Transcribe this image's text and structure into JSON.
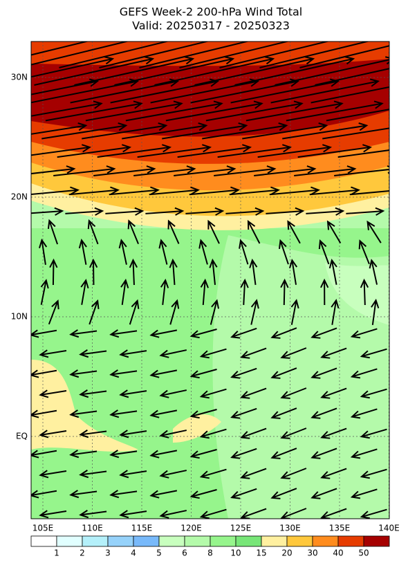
{
  "map": {
    "title": "GEFS Week-2 200-hPa Wind Total",
    "subtitle": "Valid: 20250317 - 20250323",
    "lon_ticks": [
      {
        "value": 105,
        "label": "105E"
      },
      {
        "value": 110,
        "label": "110E"
      },
      {
        "value": 115,
        "label": "115E"
      },
      {
        "value": 120,
        "label": "120E"
      },
      {
        "value": 125,
        "label": "125E"
      },
      {
        "value": 130,
        "label": "130E"
      },
      {
        "value": 135,
        "label": "135E"
      },
      {
        "value": 140,
        "label": "140E"
      }
    ],
    "lat_ticks": [
      {
        "value": 30,
        "label": "30N"
      },
      {
        "value": 20,
        "label": "20N"
      },
      {
        "value": 10,
        "label": "10N"
      },
      {
        "value": 0,
        "label": "EQ"
      }
    ]
  },
  "colorbar": {
    "levels": [
      1,
      2,
      3,
      4,
      5,
      6,
      8,
      10,
      15,
      20,
      30,
      40,
      50
    ],
    "colors": [
      "#ffffff",
      "#e1ffff",
      "#b4f0fa",
      "#96d2fa",
      "#78b9fa",
      "#c8ffbe",
      "#b4faaa",
      "#96f58c",
      "#78e678",
      "#fff0a0",
      "#ffc83c",
      "#ff8c1e",
      "#e63c00",
      "#a50000"
    ]
  }
}
